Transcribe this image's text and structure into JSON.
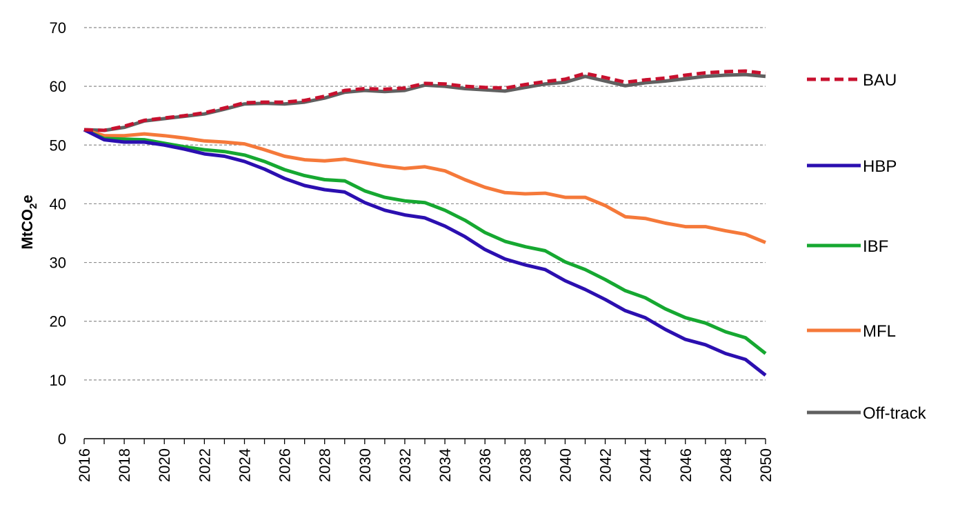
{
  "chart_data": {
    "type": "line",
    "title": "",
    "xlabel": "",
    "ylabel": "MtCO",
    "ylabel_sub": "2",
    "ylabel_suffix": "e",
    "ylim": [
      0,
      70
    ],
    "yticks": [
      0,
      10,
      20,
      30,
      40,
      50,
      60,
      70
    ],
    "xlim": [
      2016,
      2050
    ],
    "xtick_labels": [
      "2016",
      "2018",
      "2020",
      "2022",
      "2024",
      "2026",
      "2028",
      "2030",
      "2032",
      "2034",
      "2036",
      "2038",
      "2040",
      "2042",
      "2044",
      "2046",
      "2048",
      "2050"
    ],
    "grid": "horizontal dashed",
    "legend_position": "right",
    "x": [
      2016,
      2017,
      2018,
      2019,
      2020,
      2021,
      2022,
      2023,
      2024,
      2025,
      2026,
      2027,
      2028,
      2029,
      2030,
      2031,
      2032,
      2033,
      2034,
      2035,
      2036,
      2037,
      2038,
      2039,
      2040,
      2041,
      2042,
      2043,
      2044,
      2045,
      2046,
      2047,
      2048,
      2049,
      2050
    ],
    "series": [
      {
        "name": "BAU",
        "color": "#c8102e",
        "dash": true,
        "values": [
          52.6,
          52.5,
          53.2,
          54.2,
          54.6,
          55.0,
          55.5,
          56.3,
          57.2,
          57.3,
          57.3,
          57.6,
          58.3,
          59.3,
          59.6,
          59.5,
          59.7,
          60.5,
          60.4,
          60.0,
          59.8,
          59.7,
          60.3,
          60.8,
          61.2,
          62.2,
          61.5,
          60.7,
          61.1,
          61.4,
          61.9,
          62.3,
          62.5,
          62.6,
          62.2
        ]
      },
      {
        "name": "HBP",
        "color": "#2b0fb0",
        "dash": false,
        "values": [
          52.6,
          50.9,
          50.5,
          50.5,
          50.0,
          49.3,
          48.5,
          48.1,
          47.2,
          45.9,
          44.3,
          43.1,
          42.4,
          42.0,
          40.2,
          38.9,
          38.1,
          37.6,
          36.2,
          34.4,
          32.2,
          30.6,
          29.6,
          28.8,
          26.9,
          25.4,
          23.7,
          21.8,
          20.6,
          18.6,
          16.9,
          16.0,
          14.5,
          13.5,
          10.8
        ]
      },
      {
        "name": "IBF",
        "color": "#16a831",
        "dash": false,
        "values": [
          52.6,
          51.1,
          51.0,
          50.9,
          50.3,
          49.7,
          49.2,
          48.9,
          48.3,
          47.2,
          45.8,
          44.8,
          44.1,
          43.9,
          42.2,
          41.1,
          40.5,
          40.2,
          38.9,
          37.2,
          35.1,
          33.6,
          32.7,
          32.0,
          30.1,
          28.8,
          27.1,
          25.2,
          24.0,
          22.1,
          20.6,
          19.7,
          18.2,
          17.2,
          14.5
        ]
      },
      {
        "name": "MFL",
        "color": "#f5793a",
        "dash": false,
        "values": [
          52.6,
          51.6,
          51.6,
          51.9,
          51.6,
          51.2,
          50.7,
          50.5,
          50.2,
          49.2,
          48.1,
          47.5,
          47.3,
          47.6,
          47.0,
          46.4,
          46.0,
          46.3,
          45.6,
          44.1,
          42.8,
          41.9,
          41.7,
          41.8,
          41.1,
          41.1,
          39.7,
          37.8,
          37.5,
          36.7,
          36.1,
          36.1,
          35.4,
          34.8,
          33.4
        ]
      },
      {
        "name": "Off-track",
        "color": "#606060",
        "dash": false,
        "values": [
          52.6,
          52.5,
          53.0,
          54.1,
          54.5,
          54.9,
          55.3,
          56.1,
          57.0,
          57.1,
          57.0,
          57.3,
          58.0,
          59.0,
          59.3,
          59.1,
          59.3,
          60.2,
          60.0,
          59.6,
          59.4,
          59.2,
          59.8,
          60.4,
          60.7,
          61.7,
          60.9,
          60.1,
          60.6,
          60.9,
          61.3,
          61.7,
          61.9,
          62.0,
          61.7
        ]
      }
    ]
  }
}
